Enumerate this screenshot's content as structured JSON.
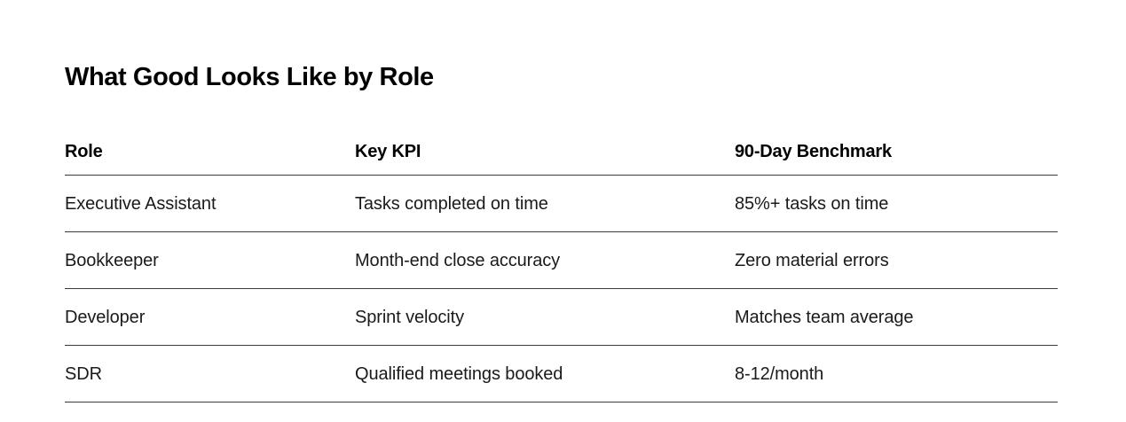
{
  "page": {
    "background_color": "#ffffff",
    "text_color": "#1a1a1a",
    "heading_color": "#000000",
    "rule_color": "#3c3c3c"
  },
  "title": "What Good Looks Like by Role",
  "table": {
    "columns": [
      "Role",
      "Key KPI",
      "90-Day Benchmark"
    ],
    "rows": [
      {
        "role": "Executive Assistant",
        "kpi": "Tasks completed on time",
        "benchmark": "85%+ tasks on time"
      },
      {
        "role": "Bookkeeper",
        "kpi": "Month-end close accuracy",
        "benchmark": "Zero material errors"
      },
      {
        "role": "Developer",
        "kpi": "Sprint velocity",
        "benchmark": "Matches team average"
      },
      {
        "role": "SDR",
        "kpi": "Qualified meetings booked",
        "benchmark": "8-12/month"
      }
    ]
  }
}
